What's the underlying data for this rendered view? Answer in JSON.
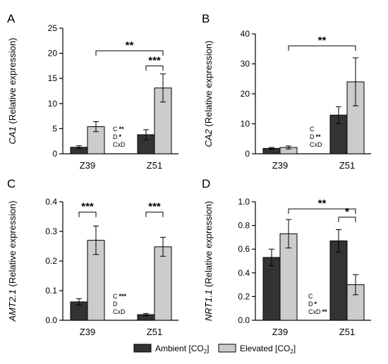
{
  "colors": {
    "ambient": "#333333",
    "elevated": "#cccccc",
    "axis": "#000000"
  },
  "legend": {
    "items": [
      {
        "label": "Ambient [CO",
        "sub": "2",
        "tail": "]",
        "color": "#333333"
      },
      {
        "label": "Elevated [CO",
        "sub": "2",
        "tail": "]",
        "color": "#cccccc"
      }
    ],
    "placement": "bottom-center"
  },
  "chart_data": [
    {
      "type": "bar",
      "panel": "A",
      "gene": "CA1",
      "ylabel_rest": " (Relative expression)",
      "categories": [
        "Z39",
        "Z51"
      ],
      "series": [
        {
          "name": "Ambient [CO2]",
          "values": [
            1.3,
            3.8
          ],
          "errors": [
            0.3,
            1.0
          ]
        },
        {
          "name": "Elevated [CO2]",
          "values": [
            5.4,
            13.1
          ],
          "errors": [
            1.0,
            2.8
          ]
        }
      ],
      "ylim": [
        0,
        25
      ],
      "yticks": [
        "0",
        "5",
        "10",
        "15",
        "20",
        "25"
      ],
      "stats": [
        {
          "label": "C",
          "sig": "**"
        },
        {
          "label": "D",
          "sig": "*"
        },
        {
          "label": "CxD",
          "sig": ""
        }
      ],
      "brackets": [
        {
          "from": [
            0,
            1
          ],
          "to": [
            1,
            1
          ],
          "y": 20.5,
          "label": "**"
        },
        {
          "from": [
            1,
            0
          ],
          "to": [
            1,
            1
          ],
          "y": 17.5,
          "label": "***"
        }
      ]
    },
    {
      "type": "bar",
      "panel": "B",
      "gene": "CA2",
      "ylabel_rest": " (Relative expression)",
      "categories": [
        "Z39",
        "Z51"
      ],
      "series": [
        {
          "name": "Ambient [CO2]",
          "values": [
            1.8,
            12.9
          ],
          "errors": [
            0.3,
            2.8
          ]
        },
        {
          "name": "Elevated [CO2]",
          "values": [
            2.1,
            24.0
          ],
          "errors": [
            0.5,
            8.0
          ]
        }
      ],
      "ylim": [
        0,
        40
      ],
      "yticks": [
        "0",
        "10",
        "20",
        "30",
        "40"
      ],
      "stats": [
        {
          "label": "C",
          "sig": ""
        },
        {
          "label": "D",
          "sig": "**"
        },
        {
          "label": "CxD",
          "sig": ""
        }
      ],
      "brackets": [
        {
          "from": [
            0,
            1
          ],
          "to": [
            1,
            1
          ],
          "y": 36.0,
          "label": "**"
        }
      ]
    },
    {
      "type": "bar",
      "panel": "C",
      "gene": "AMT2.1",
      "ylabel_rest": " (Relative expression)",
      "categories": [
        "Z39",
        "Z51"
      ],
      "series": [
        {
          "name": "Ambient [CO2]",
          "values": [
            0.062,
            0.019
          ],
          "errors": [
            0.011,
            0.004
          ]
        },
        {
          "name": "Elevated [CO2]",
          "values": [
            0.27,
            0.248
          ],
          "errors": [
            0.048,
            0.032
          ]
        }
      ],
      "ylim": [
        0,
        0.4
      ],
      "yticks": [
        "0.0",
        "0.1",
        "0.2",
        "0.3",
        "0.4"
      ],
      "stats": [
        {
          "label": "C",
          "sig": "***"
        },
        {
          "label": "D",
          "sig": ""
        },
        {
          "label": "CxD",
          "sig": ""
        }
      ],
      "brackets": [
        {
          "from": [
            0,
            0
          ],
          "to": [
            0,
            1
          ],
          "y": 0.365,
          "label": "***"
        },
        {
          "from": [
            1,
            0
          ],
          "to": [
            1,
            1
          ],
          "y": 0.365,
          "label": "***"
        }
      ]
    },
    {
      "type": "bar",
      "panel": "D",
      "gene": "NRT1.1",
      "ylabel_rest": " (Relative expression)",
      "categories": [
        "Z39",
        "Z51"
      ],
      "series": [
        {
          "name": "Ambient [CO2]",
          "values": [
            0.53,
            0.67
          ],
          "errors": [
            0.07,
            0.095
          ]
        },
        {
          "name": "Elevated [CO2]",
          "values": [
            0.73,
            0.3
          ],
          "errors": [
            0.12,
            0.085
          ]
        }
      ],
      "ylim": [
        0,
        1.0
      ],
      "yticks": [
        "0.0",
        "0.2",
        "0.4",
        "0.6",
        "0.8",
        "1.0"
      ],
      "stats": [
        {
          "label": "C",
          "sig": ""
        },
        {
          "label": "D",
          "sig": "*"
        },
        {
          "label": "CxD",
          "sig": "**"
        }
      ],
      "brackets": [
        {
          "from": [
            0,
            1
          ],
          "to": [
            1,
            1
          ],
          "y": 0.94,
          "label": "**"
        },
        {
          "from": [
            1,
            0
          ],
          "to": [
            1,
            1
          ],
          "y": 0.87,
          "label": "*"
        }
      ]
    }
  ]
}
